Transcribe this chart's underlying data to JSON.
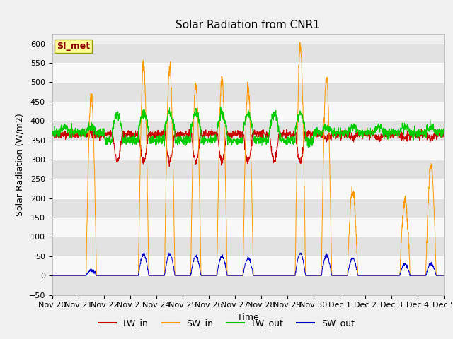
{
  "title": "Solar Radiation from CNR1",
  "ylabel": "Solar Radiation (W/m2)",
  "xlabel": "Time",
  "legend_box_label": "SI_met",
  "ylim": [
    -50,
    625
  ],
  "yticks": [
    -50,
    0,
    50,
    100,
    150,
    200,
    250,
    300,
    350,
    400,
    450,
    500,
    550,
    600
  ],
  "colors": {
    "LW_in": "#cc0000",
    "SW_in": "#ff9900",
    "LW_out": "#00cc00",
    "SW_out": "#0000cc"
  },
  "bg_color": "#f0f0f0",
  "band_color1": "#e2e2e2",
  "band_color2": "#f8f8f8",
  "n_days": 15,
  "points_per_day": 144,
  "title_fontsize": 11,
  "axis_label_fontsize": 9,
  "tick_fontsize": 8
}
